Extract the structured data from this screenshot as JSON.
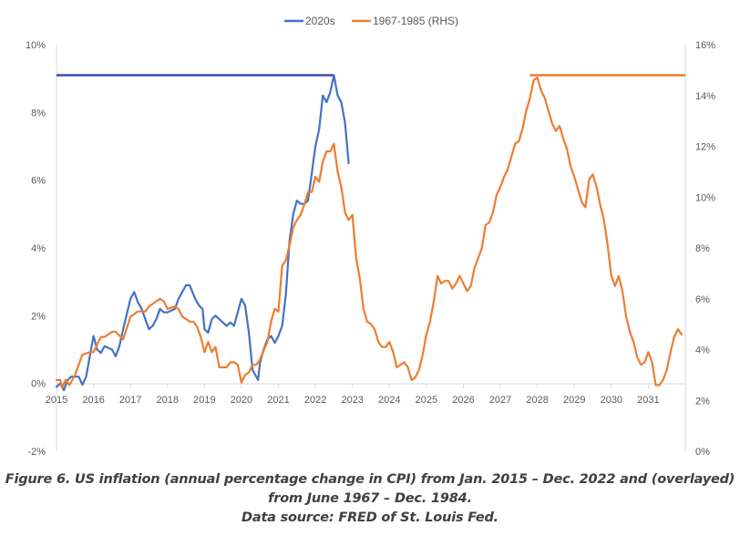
{
  "chart_data": {
    "type": "line",
    "legend_position": "top-center",
    "grid": false,
    "colors": {
      "2020s": "#4472C4",
      "1967-1985 (RHS)": "#ED7D31"
    },
    "left_axis": {
      "ylim": [
        -2,
        10
      ],
      "ticks": [
        "-2%",
        "0%",
        "2%",
        "4%",
        "6%",
        "8%",
        "10%"
      ]
    },
    "right_axis": {
      "ylim": [
        0,
        16
      ],
      "ticks": [
        "0%",
        "2%",
        "4%",
        "6%",
        "8%",
        "10%",
        "12%",
        "14%",
        "16%"
      ]
    },
    "x_axis": {
      "xlim": [
        2015.0,
        2032.0
      ],
      "ticks": [
        "2015",
        "2016",
        "2017",
        "2018",
        "2019",
        "2020",
        "2021",
        "2022",
        "2023",
        "2024",
        "2025",
        "2026",
        "2027",
        "2028",
        "2029",
        "2030",
        "2031"
      ]
    },
    "series": [
      {
        "name": "2020s",
        "axis": "left",
        "color": "#4472C4",
        "x": [
          2015.0,
          2015.1,
          2015.2,
          2015.3,
          2015.4,
          2015.5,
          2015.6,
          2015.7,
          2015.8,
          2016.0,
          2016.1,
          2016.2,
          2016.3,
          2016.5,
          2016.6,
          2016.7,
          2016.8,
          2017.0,
          2017.1,
          2017.2,
          2017.3,
          2017.5,
          2017.6,
          2017.7,
          2017.8,
          2017.9,
          2018.0,
          2018.2,
          2018.3,
          2018.5,
          2018.6,
          2018.75,
          2018.85,
          2018.95,
          2019.0,
          2019.1,
          2019.2,
          2019.3,
          2019.5,
          2019.6,
          2019.7,
          2019.8,
          2019.9,
          2020.0,
          2020.1,
          2020.2,
          2020.3,
          2020.35,
          2020.45,
          2020.5,
          2020.6,
          2020.7,
          2020.8,
          2020.9,
          2021.0,
          2021.1,
          2021.2,
          2021.3,
          2021.4,
          2021.5,
          2021.6,
          2021.7,
          2021.8,
          2021.9,
          2022.0,
          2022.1,
          2022.2,
          2022.3,
          2022.4,
          2022.5,
          2022.6,
          2022.7,
          2022.8,
          2022.9
        ],
        "y": [
          -0.1,
          0.0,
          -0.2,
          0.1,
          0.2,
          0.2,
          0.2,
          -0.04,
          0.2,
          1.4,
          1.0,
          0.9,
          1.1,
          1.0,
          0.8,
          1.1,
          1.6,
          2.5,
          2.7,
          2.4,
          2.2,
          1.6,
          1.7,
          1.9,
          2.2,
          2.1,
          2.1,
          2.2,
          2.5,
          2.9,
          2.9,
          2.5,
          2.3,
          2.2,
          1.6,
          1.5,
          1.9,
          2.0,
          1.8,
          1.7,
          1.8,
          1.7,
          2.1,
          2.5,
          2.3,
          1.5,
          0.4,
          0.3,
          0.1,
          0.6,
          1.0,
          1.3,
          1.4,
          1.2,
          1.4,
          1.7,
          2.6,
          4.2,
          5.0,
          5.4,
          5.3,
          5.3,
          5.4,
          6.2,
          7.0,
          7.5,
          8.5,
          8.3,
          8.6,
          9.1,
          8.5,
          8.3,
          7.7,
          6.5
        ],
        "reference_line": {
          "value": 9.1,
          "from": 2015.0,
          "to": 2022.5
        }
      },
      {
        "name": "1967-1985 (RHS)",
        "axis": "right",
        "color": "#ED7D31",
        "x": [
          2015.0,
          2015.1,
          2015.15,
          2015.25,
          2015.35,
          2015.5,
          2015.7,
          2015.9,
          2016.0,
          2016.2,
          2016.3,
          2016.5,
          2016.6,
          2016.8,
          2017.0,
          2017.2,
          2017.4,
          2017.5,
          2017.7,
          2017.8,
          2017.9,
          2018.0,
          2018.2,
          2018.3,
          2018.4,
          2018.5,
          2018.6,
          2018.7,
          2018.8,
          2018.9,
          2019.0,
          2019.1,
          2019.2,
          2019.3,
          2019.4,
          2019.6,
          2019.7,
          2019.8,
          2019.9,
          2020.0,
          2020.1,
          2020.2,
          2020.3,
          2020.4,
          2020.5,
          2020.7,
          2020.8,
          2020.9,
          2021.0,
          2021.1,
          2021.2,
          2021.3,
          2021.4,
          2021.5,
          2021.6,
          2021.7,
          2021.8,
          2021.9,
          2022.0,
          2022.1,
          2022.2,
          2022.3,
          2022.4,
          2022.5,
          2022.6,
          2022.7,
          2022.8,
          2022.9,
          2023.0,
          2023.1,
          2023.2,
          2023.3,
          2023.4,
          2023.5,
          2023.6,
          2023.7,
          2023.8,
          2023.9,
          2024.0,
          2024.1,
          2024.2,
          2024.3,
          2024.4,
          2024.5,
          2024.6,
          2024.7,
          2024.8,
          2024.9,
          2025.0,
          2025.1,
          2025.2,
          2025.3,
          2025.4,
          2025.5,
          2025.6,
          2025.7,
          2025.8,
          2025.9,
          2026.0,
          2026.1,
          2026.2,
          2026.3,
          2026.4,
          2026.5,
          2026.6,
          2026.7,
          2026.8,
          2026.9,
          2027.0,
          2027.1,
          2027.2,
          2027.3,
          2027.4,
          2027.5,
          2027.6,
          2027.7,
          2027.8,
          2027.9,
          2028.0,
          2028.1,
          2028.2,
          2028.3,
          2028.4,
          2028.5,
          2028.6,
          2028.7,
          2028.8,
          2028.9,
          2029.0,
          2029.1,
          2029.2,
          2029.3,
          2029.4,
          2029.5,
          2029.6,
          2029.7,
          2029.8,
          2029.9,
          2030.0,
          2030.1,
          2030.2,
          2030.3,
          2030.4,
          2030.5,
          2030.6,
          2030.7,
          2030.8,
          2030.9,
          2031.0,
          2031.1,
          2031.2,
          2031.3,
          2031.4,
          2031.5,
          2031.6,
          2031.7,
          2031.8,
          2031.9
        ],
        "y": [
          2.8,
          2.8,
          2.5,
          2.8,
          2.6,
          3.0,
          3.8,
          3.9,
          3.9,
          4.5,
          4.5,
          4.7,
          4.7,
          4.4,
          5.3,
          5.5,
          5.5,
          5.7,
          5.9,
          6.0,
          5.9,
          5.6,
          5.7,
          5.6,
          5.3,
          5.2,
          5.1,
          5.1,
          4.9,
          4.5,
          3.9,
          4.3,
          3.9,
          4.1,
          3.3,
          3.3,
          3.5,
          3.5,
          3.4,
          2.7,
          3.0,
          3.1,
          3.4,
          3.4,
          3.6,
          4.3,
          5.1,
          5.6,
          5.5,
          7.3,
          7.5,
          8.1,
          8.8,
          9.1,
          9.3,
          9.7,
          10.2,
          10.2,
          10.8,
          10.6,
          11.4,
          11.8,
          11.8,
          12.1,
          11.0,
          10.4,
          9.4,
          9.1,
          9.3,
          7.6,
          6.8,
          5.6,
          5.1,
          5.0,
          4.8,
          4.3,
          4.1,
          4.1,
          4.3,
          3.9,
          3.3,
          3.4,
          3.5,
          3.3,
          2.8,
          2.9,
          3.2,
          3.8,
          4.6,
          5.1,
          5.9,
          6.9,
          6.6,
          6.7,
          6.7,
          6.4,
          6.6,
          6.9,
          6.6,
          6.3,
          6.5,
          7.2,
          7.6,
          8.0,
          8.9,
          9.0,
          9.4,
          10.1,
          10.4,
          10.8,
          11.1,
          11.6,
          12.1,
          12.2,
          12.7,
          13.4,
          13.9,
          14.6,
          14.7,
          14.2,
          13.9,
          13.4,
          12.9,
          12.6,
          12.8,
          12.3,
          11.9,
          11.2,
          10.8,
          10.3,
          9.8,
          9.6,
          10.7,
          10.9,
          10.4,
          9.7,
          9.1,
          8.1,
          6.9,
          6.5,
          6.9,
          6.3,
          5.3,
          4.7,
          4.3,
          3.7,
          3.4,
          3.5,
          3.9,
          3.5,
          2.6,
          2.6,
          2.8,
          3.2,
          3.9,
          4.5,
          4.8,
          4.6
        ],
        "reference_line": {
          "value": 14.8,
          "from": 2027.8,
          "to": 2032.0
        }
      }
    ]
  },
  "caption": {
    "line1": "Figure 6. US inflation (annual percentage change in CPI) from Jan. 2015 – Dec. 2022 and (overlayed)",
    "line2": "from June 1967 – Dec. 1984.",
    "line3": "Data source: FRED of St. Louis Fed."
  }
}
